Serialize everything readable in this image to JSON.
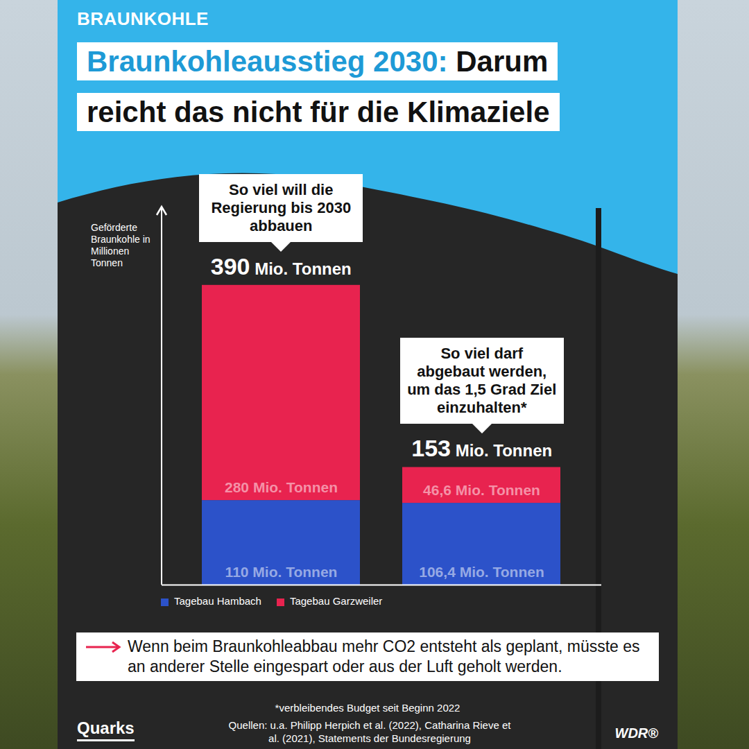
{
  "chart_data": {
    "type": "bar",
    "stacked": true,
    "kicker": "BRAUNKOHLE",
    "title": "Braunkohleausstieg 2030: Darum reicht das nicht für die Klimaziele",
    "ylabel": "Geförderte Braunkohle in Millionen Tonnen",
    "categories": [
      null,
      null
    ],
    "annotations": [
      "So viel will die Regierung bis 2030 abbauen",
      "So viel darf abgebaut werden, um das 1,5 Grad Ziel einzuhalten*"
    ],
    "totals": [
      390,
      153
    ],
    "total_labels": [
      "390 Mio. Tonnen",
      "153 Mio. Tonnen"
    ],
    "series": [
      {
        "name": "Tagebau Hambach",
        "color": "#2c52c9",
        "values": [
          110,
          106.4
        ],
        "value_labels": [
          "110 Mio. Tonnen",
          "106,4 Mio. Tonnen"
        ]
      },
      {
        "name": "Tagebau Garzweiler",
        "color": "#e8234f",
        "values": [
          280,
          46.6
        ],
        "value_labels": [
          "280 Mio. Tonnen",
          "46,6 Mio. Tonnen"
        ]
      }
    ],
    "ylim": [
      0,
      490
    ],
    "yticks": [],
    "tick_labels": false,
    "data_labels": true,
    "legend": "bottom-left",
    "note": "Wenn beim Braunkohleabbau mehr CO2 entsteht als geplant, müsste es an anderer Stelle eingespart oder aus der Luft geholt werden.",
    "footnote": "*verbleibendes Budget seit Beginn 2022",
    "source": "Quellen: u.a. Philipp Herpich et al. (2022), Catharina Rieve et al. (2021), Statements der Bundesregierung",
    "logos": [
      "Quarks",
      "WDR®"
    ]
  }
}
